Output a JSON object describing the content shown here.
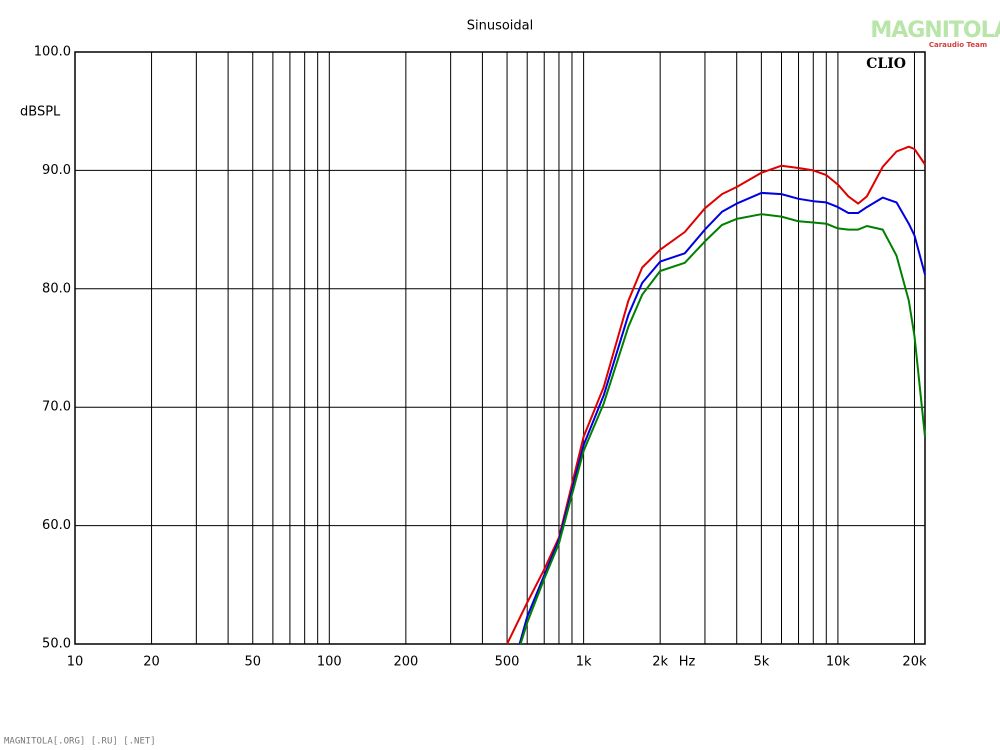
{
  "chart_data": {
    "type": "line",
    "title": "Sinusoidal",
    "y_label": "dBSPL",
    "x_label": "Hz",
    "brand": "CLIO",
    "watermark": "MAGNITOLA",
    "watermark_sub": "Caraudio Team",
    "footer": "MAGNITOLA[.ORG] [.RU] [.NET]",
    "xlog": true,
    "grid": true,
    "xlim": [
      10,
      22000
    ],
    "ylim": [
      50,
      100
    ],
    "xticks": [
      10,
      20,
      50,
      100,
      200,
      500,
      {
        "value": 1000,
        "label": "1k"
      },
      {
        "value": 2000,
        "label": "2k"
      },
      {
        "value": 5000,
        "label": "5k"
      },
      {
        "value": 10000,
        "label": "10k"
      },
      {
        "value": 20000,
        "label": "20k"
      }
    ],
    "xminorticks": [
      30,
      40,
      60,
      70,
      80,
      90,
      300,
      400,
      600,
      700,
      800,
      900,
      3000,
      4000,
      6000,
      7000,
      8000,
      9000
    ],
    "yticks": [
      {
        "value": 50,
        "label": "50.0"
      },
      {
        "value": 60,
        "label": "60.0"
      },
      {
        "value": 70,
        "label": "70.0"
      },
      {
        "value": 80,
        "label": "80.0"
      },
      {
        "value": 90,
        "label": "90.0"
      },
      {
        "value": 100,
        "label": "100.0"
      }
    ],
    "series": [
      {
        "color": "#e00000",
        "x": [
          500,
          600,
          700,
          800,
          1000,
          1200,
          1500,
          1700,
          2000,
          2500,
          3000,
          3500,
          4000,
          5000,
          6000,
          7000,
          8000,
          9000,
          10000,
          11000,
          12000,
          13000,
          15000,
          17000,
          19000,
          20000,
          22000
        ],
        "values": [
          50,
          53.5,
          56.3,
          59,
          67.5,
          71.7,
          79,
          81.8,
          83.3,
          84.8,
          86.8,
          88,
          88.6,
          89.8,
          90.4,
          90.2,
          90,
          89.6,
          88.8,
          87.8,
          87.2,
          87.8,
          90.3,
          91.6,
          92,
          91.8,
          90.5
        ]
      },
      {
        "color": "#0000e0",
        "x": [
          560,
          600,
          700,
          800,
          1000,
          1200,
          1500,
          1700,
          2000,
          2500,
          3000,
          3500,
          4000,
          5000,
          6000,
          7000,
          8000,
          9000,
          10000,
          11000,
          12000,
          13000,
          15000,
          17000,
          19000,
          20000,
          22000
        ],
        "values": [
          50,
          52.3,
          55.8,
          58.8,
          66.8,
          71,
          77.8,
          80.5,
          82.3,
          83,
          85,
          86.5,
          87.2,
          88.1,
          88,
          87.6,
          87.4,
          87.3,
          86.9,
          86.4,
          86.4,
          86.9,
          87.7,
          87.3,
          85.5,
          84.5,
          81.2
        ]
      },
      {
        "color": "#008000",
        "x": [
          565,
          600,
          700,
          800,
          1000,
          1200,
          1500,
          1700,
          2000,
          2500,
          3000,
          3500,
          4000,
          5000,
          6000,
          7000,
          8000,
          9000,
          10000,
          11000,
          12000,
          13000,
          15000,
          17000,
          19000,
          20000,
          22000
        ],
        "values": [
          50,
          51.8,
          55.5,
          58.5,
          66.3,
          70.3,
          76.8,
          79.5,
          81.5,
          82.2,
          84,
          85.4,
          85.9,
          86.3,
          86.1,
          85.7,
          85.6,
          85.5,
          85.1,
          85,
          85,
          85.3,
          85,
          82.8,
          79,
          76,
          67.5
        ]
      }
    ]
  }
}
